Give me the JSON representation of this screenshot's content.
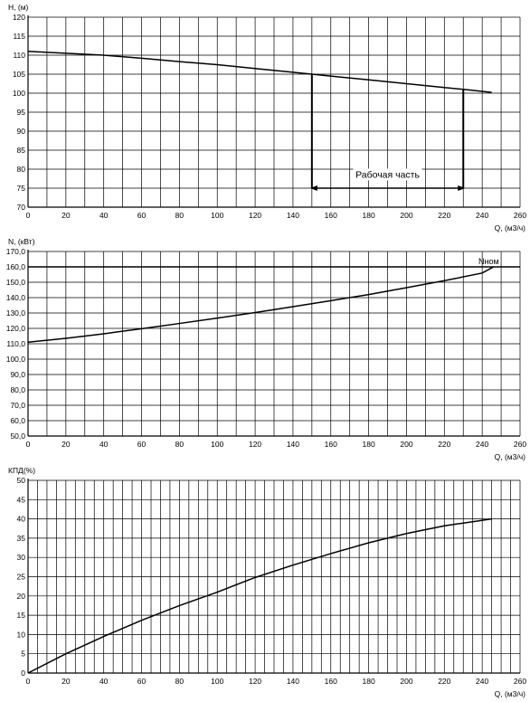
{
  "chart_data": [
    {
      "type": "line",
      "title": "",
      "ylabel": "H, (м)",
      "xlabel": "Q, (м3/ч)",
      "xlim": [
        0,
        260
      ],
      "ylim": [
        70,
        120
      ],
      "xticks": [
        0,
        20,
        40,
        60,
        80,
        100,
        120,
        140,
        160,
        180,
        200,
        220,
        240,
        260
      ],
      "yticks": [
        70,
        75,
        80,
        85,
        90,
        95,
        100,
        105,
        110,
        115,
        120
      ],
      "ytick_labels": [
        "70",
        "75",
        "80",
        "85",
        "90",
        "95",
        "100",
        "105",
        "110",
        "115",
        "120"
      ],
      "grid": true,
      "series": [
        {
          "x": [
            0,
            20,
            40,
            60,
            80,
            100,
            120,
            140,
            150,
            160,
            180,
            200,
            220,
            230,
            245
          ],
          "y": [
            111,
            110.5,
            110,
            109.2,
            108.3,
            107.5,
            106.5,
            105.5,
            105,
            104.5,
            103.5,
            102.5,
            101.5,
            101,
            100.2
          ]
        }
      ],
      "annotation": {
        "text": "Рабочая часть",
        "x_start": 150,
        "x_end": 230,
        "arrow_y": 75,
        "label_y": 78
      }
    },
    {
      "type": "line",
      "title": "",
      "ylabel": "N, (кВт)",
      "xlabel": "Q, (м3/ч)",
      "xlim": [
        0,
        260
      ],
      "ylim": [
        50,
        170
      ],
      "xticks": [
        0,
        20,
        40,
        60,
        80,
        100,
        120,
        140,
        160,
        180,
        200,
        220,
        240,
        260
      ],
      "yticks": [
        50,
        60,
        70,
        80,
        90,
        100,
        110,
        120,
        130,
        140,
        150,
        160,
        170
      ],
      "ytick_labels": [
        "50,0",
        "60,0",
        "70,0",
        "80,0",
        "90,0",
        "100,0",
        "110,0",
        "120,0",
        "130,0",
        "140,0",
        "150,0",
        "160,0",
        "170,0"
      ],
      "grid": true,
      "series": [
        {
          "x": [
            0,
            20,
            40,
            60,
            80,
            100,
            120,
            140,
            160,
            180,
            200,
            220,
            240,
            246
          ],
          "y": [
            111,
            113.5,
            116.5,
            119.8,
            123.2,
            126.7,
            130.3,
            134.1,
            138,
            142,
            146.5,
            151,
            156,
            160
          ]
        }
      ],
      "reference_line": {
        "label": "Nном",
        "y": 160
      }
    },
    {
      "type": "line",
      "title": "",
      "ylabel": "КПД(%)",
      "xlabel": "Q, (м3/ч)",
      "xlim": [
        0,
        260
      ],
      "ylim": [
        0,
        50
      ],
      "xticks": [
        0,
        20,
        40,
        60,
        80,
        100,
        120,
        140,
        160,
        180,
        200,
        220,
        240,
        260
      ],
      "yticks": [
        0,
        5,
        10,
        15,
        20,
        25,
        30,
        35,
        40,
        45,
        50
      ],
      "ytick_labels": [
        "0",
        "5",
        "10",
        "15",
        "20",
        "25",
        "30",
        "35",
        "40",
        "45",
        "50"
      ],
      "grid": true,
      "series": [
        {
          "x": [
            0,
            20,
            40,
            60,
            80,
            100,
            120,
            140,
            160,
            180,
            200,
            220,
            245
          ],
          "y": [
            0,
            5,
            9.5,
            13.7,
            17.5,
            21,
            24.8,
            28,
            31,
            33.8,
            36.2,
            38.2,
            40
          ]
        }
      ]
    }
  ]
}
